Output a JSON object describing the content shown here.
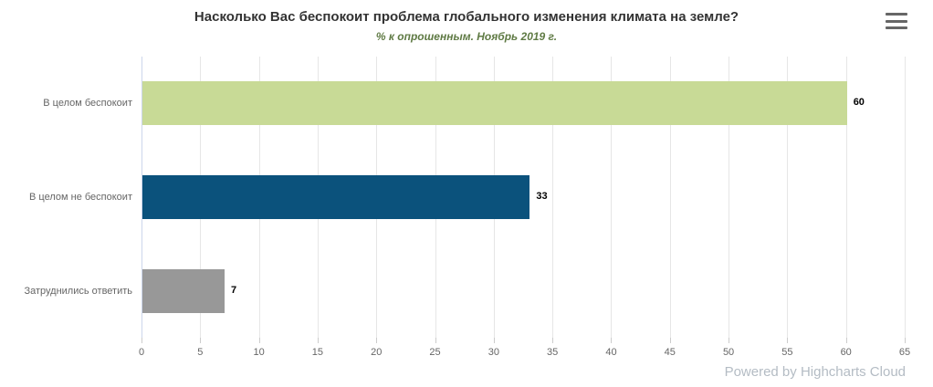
{
  "header": {
    "title": "Насколько Вас беспокоит проблема глобального изменения климата на земле?",
    "subtitle": "% к опрошенным. Ноябрь 2019 г."
  },
  "footer": {
    "credit": "Powered by Highcharts Cloud"
  },
  "colors": {
    "title": "#333333",
    "subtitle": "#5f7a44",
    "axis_text": "#666666",
    "gridline": "#e6e6e6",
    "credit": "#b4bcc4"
  },
  "chart_data": {
    "type": "bar",
    "orientation": "horizontal",
    "title": "Насколько Вас беспокоит проблема глобального изменения климата на земле?",
    "subtitle": "% к опрошенным. Ноябрь 2019 г.",
    "categories": [
      "В целом беспокоит",
      "В целом не беспокоит",
      "Затруднились ответить"
    ],
    "values": [
      60,
      33,
      7
    ],
    "bar_colors": [
      "#c8da96",
      "#0b527c",
      "#989898"
    ],
    "xlim": [
      0,
      65
    ],
    "ticks": [
      0,
      5,
      10,
      15,
      20,
      25,
      30,
      35,
      40,
      45,
      50,
      55,
      60,
      65
    ],
    "grid": true,
    "legend": false,
    "data_labels": true
  }
}
